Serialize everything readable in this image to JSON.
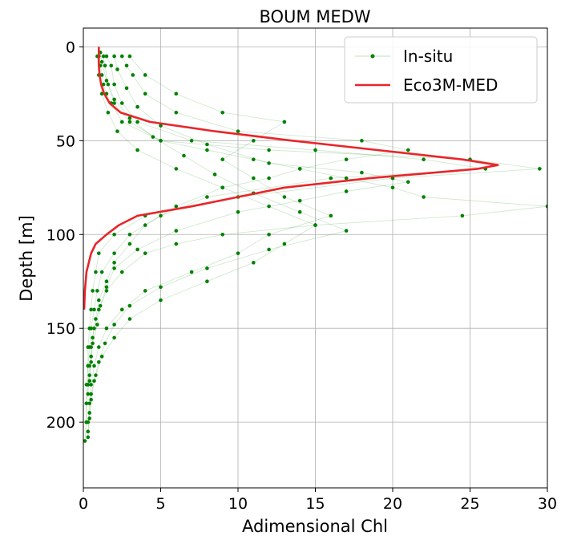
{
  "chart_data": {
    "type": "scatter",
    "title": "BOUM MEDW",
    "xlabel": "Adimensional Chl",
    "ylabel": "Depth [m]",
    "xlim": [
      0,
      30
    ],
    "ylim": [
      235,
      -10
    ],
    "y_inverted": true,
    "xticks": [
      "0",
      "5",
      "10",
      "15",
      "20",
      "25",
      "30"
    ],
    "yticks": [
      "0",
      "50",
      "100",
      "150",
      "200"
    ],
    "grid": true,
    "legend_position": "upper-right",
    "colors": {
      "in_situ": "#008000",
      "model": "#e8262a"
    },
    "series": [
      {
        "name": "In-situ",
        "style": "points-with-thin-lines",
        "profiles": [
          [
            [
              1.0,
              5
            ],
            [
              1.1,
              10
            ],
            [
              1.2,
              15
            ],
            [
              1.3,
              20
            ],
            [
              1.5,
              25
            ],
            [
              1.8,
              30
            ],
            [
              2.5,
              40
            ],
            [
              5.0,
              50
            ],
            [
              12.0,
              55
            ],
            [
              25.0,
              60
            ],
            [
              29.5,
              65
            ],
            [
              20.0,
              70
            ],
            [
              10.0,
              80
            ],
            [
              4.0,
              90
            ],
            [
              2.0,
              100
            ],
            [
              1.0,
              110
            ],
            [
              0.8,
              120
            ],
            [
              0.6,
              130
            ],
            [
              0.5,
              140
            ],
            [
              0.4,
              150
            ],
            [
              0.3,
              160
            ],
            [
              0.3,
              170
            ],
            [
              0.2,
              180
            ],
            [
              0.2,
              190
            ],
            [
              0.2,
              200
            ],
            [
              0.1,
              210
            ]
          ],
          [
            [
              1.5,
              5
            ],
            [
              1.8,
              10
            ],
            [
              2.0,
              20
            ],
            [
              2.5,
              30
            ],
            [
              3.5,
              40
            ],
            [
              7.0,
              50
            ],
            [
              15.0,
              55
            ],
            [
              22.0,
              60
            ],
            [
              26.0,
              65
            ],
            [
              16.0,
              70
            ],
            [
              8.0,
              80
            ],
            [
              5.0,
              90
            ],
            [
              3.0,
              100
            ],
            [
              2.0,
              110
            ],
            [
              1.2,
              120
            ],
            [
              0.9,
              130
            ],
            [
              0.7,
              140
            ],
            [
              0.5,
              150
            ],
            [
              0.4,
              160
            ],
            [
              0.3,
              170
            ],
            [
              0.3,
              180
            ],
            [
              0.2,
              190
            ],
            [
              0.2,
              200
            ]
          ],
          [
            [
              2.5,
              5
            ],
            [
              2.8,
              10
            ],
            [
              3.2,
              15
            ],
            [
              4.0,
              25
            ],
            [
              6.0,
              35
            ],
            [
              10.0,
              45
            ],
            [
              18.0,
              50
            ],
            [
              21.0,
              55
            ],
            [
              17.0,
              60
            ],
            [
              14.0,
              65
            ],
            [
              12.0,
              70
            ],
            [
              9.0,
              75
            ],
            [
              6.0,
              85
            ],
            [
              4.0,
              95
            ],
            [
              3.0,
              105
            ],
            [
              2.0,
              115
            ],
            [
              1.5,
              125
            ],
            [
              1.0,
              135
            ],
            [
              0.8,
              145
            ],
            [
              0.6,
              155
            ],
            [
              0.5,
              165
            ],
            [
              0.4,
              175
            ],
            [
              0.3,
              185
            ]
          ],
          [
            [
              3.0,
              5
            ],
            [
              4.0,
              15
            ],
            [
              6.0,
              25
            ],
            [
              9.0,
              35
            ],
            [
              13.0,
              40
            ],
            [
              11.0,
              50
            ],
            [
              9.0,
              60
            ],
            [
              11.0,
              70
            ],
            [
              13.0,
              80
            ],
            [
              16.0,
              90
            ],
            [
              12.0,
              100
            ],
            [
              10.0,
              110
            ],
            [
              7.0,
              120
            ],
            [
              4.0,
              130
            ],
            [
              2.5,
              140
            ],
            [
              1.5,
              150
            ],
            [
              1.0,
              160
            ],
            [
              0.7,
              170
            ],
            [
              0.5,
              180
            ],
            [
              0.4,
              190
            ],
            [
              0.3,
              200
            ]
          ],
          [
            [
              1.3,
              5
            ],
            [
              1.4,
              10
            ],
            [
              1.6,
              20
            ],
            [
              2.0,
              30
            ],
            [
              3.0,
              40
            ],
            [
              5.0,
              50
            ],
            [
              8.0,
              55
            ],
            [
              11.0,
              60
            ],
            [
              14.0,
              65
            ],
            [
              17.0,
              70
            ],
            [
              20.0,
              75
            ],
            [
              22.0,
              80
            ],
            [
              30.0,
              85
            ],
            [
              24.5,
              90
            ],
            [
              15.0,
              95
            ],
            [
              9.0,
              100
            ],
            [
              6.0,
              105
            ],
            [
              4.0,
              110
            ],
            [
              2.5,
              120
            ],
            [
              1.5,
              130
            ],
            [
              1.0,
              140
            ],
            [
              0.7,
              150
            ],
            [
              0.5,
              160
            ],
            [
              0.4,
              170
            ],
            [
              0.3,
              180
            ]
          ],
          [
            [
              0.9,
              5
            ],
            [
              1.0,
              15
            ],
            [
              1.2,
              25
            ],
            [
              1.6,
              35
            ],
            [
              2.2,
              45
            ],
            [
              3.5,
              55
            ],
            [
              6.0,
              65
            ],
            [
              9.0,
              75
            ],
            [
              12.0,
              85
            ],
            [
              15.0,
              95
            ],
            [
              13.0,
              105
            ],
            [
              11.0,
              115
            ],
            [
              8.0,
              125
            ],
            [
              5.0,
              135
            ],
            [
              3.0,
              145
            ],
            [
              2.0,
              155
            ],
            [
              1.2,
              165
            ],
            [
              0.8,
              175
            ],
            [
              0.5,
              185
            ],
            [
              0.4,
              195
            ],
            [
              0.3,
              205
            ]
          ],
          [
            [
              2.0,
              5
            ],
            [
              2.2,
              12
            ],
            [
              2.8,
              22
            ],
            [
              3.5,
              32
            ],
            [
              5.0,
              42
            ],
            [
              8.0,
              52
            ],
            [
              12.0,
              62
            ],
            [
              18.0,
              67
            ],
            [
              21.0,
              72
            ],
            [
              17.0,
              77
            ],
            [
              14.0,
              82
            ],
            [
              10.0,
              88
            ],
            [
              6.0,
              98
            ],
            [
              3.5,
              108
            ],
            [
              2.0,
              118
            ],
            [
              1.5,
              128
            ],
            [
              1.1,
              138
            ],
            [
              0.9,
              148
            ],
            [
              0.6,
              158
            ],
            [
              0.5,
              168
            ],
            [
              0.4,
              178
            ]
          ],
          [
            [
              1.1,
              3
            ],
            [
              1.2,
              8
            ],
            [
              1.5,
              18
            ],
            [
              2.0,
              28
            ],
            [
              3.0,
              38
            ],
            [
              4.5,
              48
            ],
            [
              6.5,
              58
            ],
            [
              8.5,
              68
            ],
            [
              11.0,
              78
            ],
            [
              14.0,
              88
            ],
            [
              17.0,
              98
            ],
            [
              12.0,
              108
            ],
            [
              8.0,
              118
            ],
            [
              5.0,
              128
            ],
            [
              3.0,
              138
            ],
            [
              2.0,
              148
            ],
            [
              1.4,
              158
            ],
            [
              1.0,
              168
            ],
            [
              0.7,
              178
            ],
            [
              0.5,
              188
            ],
            [
              0.4,
              198
            ],
            [
              0.3,
              208
            ]
          ]
        ]
      },
      {
        "name": "Eco3M-MED",
        "style": "line",
        "depth": [
          0,
          5,
          10,
          15,
          20,
          25,
          30,
          35,
          40,
          45,
          50,
          55,
          60,
          63,
          65,
          70,
          75,
          80,
          85,
          90,
          95,
          100,
          105,
          110,
          115,
          120,
          125,
          130,
          140
        ],
        "value": [
          1.0,
          1.0,
          1.0,
          1.05,
          1.15,
          1.35,
          1.7,
          2.4,
          4.3,
          8.5,
          13.5,
          19.0,
          24.5,
          26.8,
          25.5,
          18.5,
          13.0,
          10.0,
          7.0,
          3.5,
          2.3,
          1.5,
          0.8,
          0.5,
          0.35,
          0.2,
          0.15,
          0.1,
          0.05
        ]
      }
    ]
  }
}
